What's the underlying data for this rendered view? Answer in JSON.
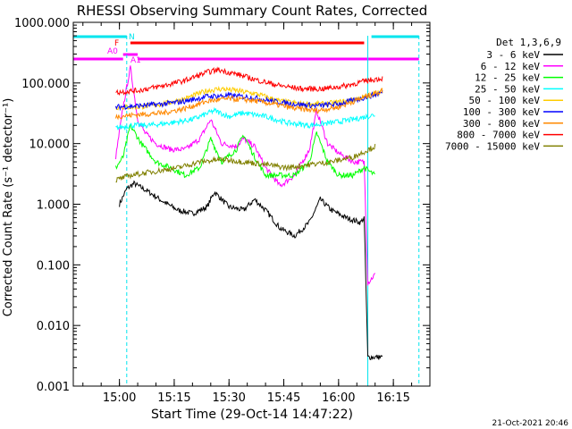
{
  "chart_data": {
    "type": "line",
    "title": "RHESSI Observing Summary Count Rates, Corrected",
    "xlabel": "Start Time (29-Oct-14 14:47:22)",
    "ylabel": "Corrected Count Rate (s⁻¹ detector⁻¹)",
    "ylog": true,
    "ylim": [
      0.001,
      1000
    ],
    "xlim": [
      "14:47:22",
      "16:25:00"
    ],
    "y_ticks": [
      "0.001",
      "0.010",
      "0.100",
      "1.000",
      "10.000",
      "100.000",
      "1000.000"
    ],
    "x_ticks": [
      "15:00",
      "15:15",
      "15:30",
      "15:45",
      "16:00",
      "16:15"
    ],
    "legend_title": "Det 1,3,6,9",
    "legend_position": "right",
    "timestamp": "21-Oct-2021 20:46",
    "grid": false,
    "markers": [
      {
        "label": "N",
        "color": "#00e5ee",
        "segments": [
          [
            "14:47:22",
            "15:02:00"
          ],
          [
            "16:09:00",
            "16:22:00"
          ]
        ]
      },
      {
        "label": "F",
        "color": "#ff0000",
        "segments": [
          [
            "15:03:00",
            "16:07:00"
          ]
        ]
      },
      {
        "label": "A0",
        "color": "#ff00ff",
        "segments": [
          [
            "14:47:22",
            "15:01:00"
          ],
          [
            "15:05:00",
            "16:22:00"
          ]
        ]
      },
      {
        "label": "A1",
        "color": "#ff00ff",
        "segments": [
          [
            "15:01:00",
            "15:05:00"
          ]
        ]
      }
    ],
    "vlines": [
      {
        "time": "15:02:00",
        "style": "dashed",
        "color": "#00e5ee"
      },
      {
        "time": "16:08:00",
        "style": "solid",
        "color": "#00e5ee"
      },
      {
        "time": "16:22:00",
        "style": "dashed",
        "color": "#00e5ee"
      }
    ],
    "series": [
      {
        "name": "3 - 6 keV",
        "color": "#000000",
        "x": [
          "15:00",
          "15:02",
          "15:04",
          "15:08",
          "15:12",
          "15:16",
          "15:20",
          "15:24",
          "15:26",
          "15:30",
          "15:34",
          "15:37",
          "15:40",
          "15:44",
          "15:48",
          "15:52",
          "15:55",
          "15:58",
          "16:02",
          "16:06",
          "16:07",
          "16:08",
          "16:12"
        ],
        "y": [
          1.0,
          1.8,
          2.2,
          1.6,
          1.1,
          0.8,
          0.7,
          0.9,
          1.6,
          0.9,
          0.8,
          1.2,
          0.8,
          0.4,
          0.3,
          0.5,
          1.2,
          0.8,
          0.6,
          0.5,
          0.6,
          0.003,
          0.003
        ]
      },
      {
        "name": "6 - 12 keV",
        "color": "#ff00ff",
        "x": [
          "14:59",
          "15:01",
          "15:03",
          "15:05",
          "15:07",
          "15:10",
          "15:14",
          "15:18",
          "15:22",
          "15:25",
          "15:28",
          "15:32",
          "15:34",
          "15:37",
          "15:40",
          "15:44",
          "15:48",
          "15:52",
          "15:54",
          "15:57",
          "16:00",
          "16:04",
          "16:07",
          "16:08",
          "16:10"
        ],
        "y": [
          6,
          40,
          180,
          25,
          15,
          10,
          8,
          8,
          12,
          25,
          10,
          9,
          12,
          9,
          4,
          2,
          3,
          8,
          35,
          10,
          7,
          5,
          5,
          0.05,
          0.07
        ]
      },
      {
        "name": "12 - 25 keV",
        "color": "#00ff00",
        "x": [
          "14:59",
          "15:01",
          "15:03",
          "15:06",
          "15:10",
          "15:14",
          "15:18",
          "15:22",
          "15:25",
          "15:28",
          "15:32",
          "15:34",
          "15:37",
          "15:40",
          "15:44",
          "15:48",
          "15:52",
          "15:54",
          "15:57",
          "16:00",
          "16:04",
          "16:07",
          "16:10"
        ],
        "y": [
          4,
          6,
          20,
          10,
          5,
          4,
          3,
          4,
          12,
          5,
          8,
          14,
          6,
          3,
          3,
          3,
          5,
          15,
          5,
          3,
          3,
          4,
          3
        ]
      },
      {
        "name": "25 - 50 keV",
        "color": "#00ffff",
        "x": [
          "14:59",
          "15:03",
          "15:08",
          "15:14",
          "15:20",
          "15:26",
          "15:30",
          "15:34",
          "15:40",
          "15:46",
          "15:52",
          "15:58",
          "16:04",
          "16:10"
        ],
        "y": [
          18,
          20,
          20,
          22,
          25,
          35,
          28,
          32,
          28,
          22,
          20,
          22,
          25,
          30
        ]
      },
      {
        "name": "50 - 100 keV",
        "color": "#ffcc00",
        "x": [
          "14:59",
          "15:05",
          "15:12",
          "15:18",
          "15:24",
          "15:28",
          "15:32",
          "15:38",
          "15:44",
          "15:50",
          "15:56",
          "16:02",
          "16:08",
          "16:12"
        ],
        "y": [
          40,
          40,
          45,
          55,
          75,
          80,
          75,
          65,
          50,
          45,
          45,
          50,
          60,
          75
        ]
      },
      {
        "name": "100 - 300 keV",
        "color": "#0000ff",
        "x": [
          "14:59",
          "15:05",
          "15:12",
          "15:18",
          "15:24",
          "15:30",
          "15:36",
          "15:42",
          "15:48",
          "15:54",
          "16:00",
          "16:06",
          "16:12"
        ],
        "y": [
          40,
          42,
          45,
          50,
          60,
          62,
          58,
          50,
          45,
          42,
          45,
          55,
          70
        ]
      },
      {
        "name": "300 - 800 keV",
        "color": "#ff8800",
        "x": [
          "14:59",
          "15:05",
          "15:12",
          "15:18",
          "15:24",
          "15:30",
          "15:36",
          "15:42",
          "15:48",
          "15:54",
          "16:00",
          "16:06",
          "16:12"
        ],
        "y": [
          28,
          30,
          32,
          38,
          50,
          55,
          52,
          45,
          38,
          35,
          40,
          55,
          75
        ]
      },
      {
        "name": "800 - 7000 keV",
        "color": "#ff0000",
        "x": [
          "14:59",
          "15:05",
          "15:12",
          "15:18",
          "15:24",
          "15:27",
          "15:32",
          "15:38",
          "15:44",
          "15:50",
          "15:56",
          "16:02",
          "16:08",
          "16:12"
        ],
        "y": [
          70,
          75,
          90,
          110,
          150,
          165,
          140,
          110,
          90,
          80,
          80,
          90,
          110,
          120
        ]
      },
      {
        "name": "7000 - 15000 keV",
        "color": "#808000",
        "x": [
          "14:59",
          "15:03",
          "15:10",
          "15:16",
          "15:22",
          "15:28",
          "15:34",
          "15:40",
          "15:46",
          "15:52",
          "15:58",
          "16:04",
          "16:10"
        ],
        "y": [
          2.5,
          3,
          3.5,
          4,
          5,
          5.5,
          5,
          4.5,
          4,
          4.5,
          5,
          6,
          9
        ]
      }
    ]
  }
}
